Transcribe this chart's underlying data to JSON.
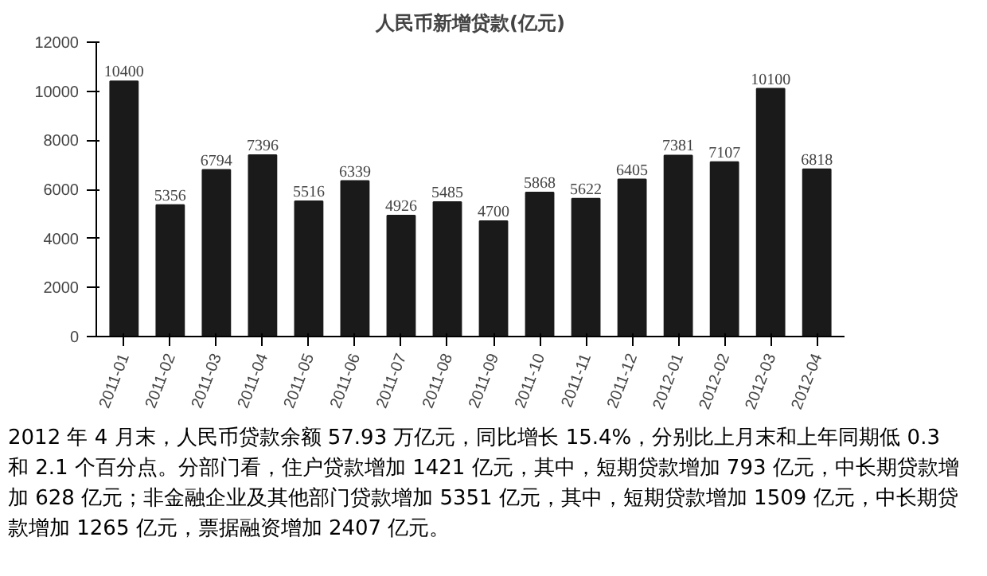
{
  "chart_data": {
    "type": "bar",
    "title": "人民币新增贷款(亿元)",
    "categories": [
      "2011-01",
      "2011-02",
      "2011-03",
      "2011-04",
      "2011-05",
      "2011-06",
      "2011-07",
      "2011-08",
      "2011-09",
      "2011-10",
      "2011-11",
      "2011-12",
      "2012-01",
      "2012-02",
      "2012-03",
      "2012-04"
    ],
    "values": [
      10400,
      5356,
      6794,
      7396,
      5516,
      6339,
      4926,
      5485,
      4700,
      5868,
      5622,
      6405,
      7381,
      7107,
      10100,
      6818
    ],
    "color": "#1a1a1a",
    "ylim": [
      0,
      12000
    ],
    "yticks": [
      0,
      2000,
      4000,
      6000,
      8000,
      10000,
      12000
    ],
    "grid": false,
    "data_labels": true,
    "annotations": [
      "2012 年 4 月末，人民币贷款余额 57.93 万亿元，同比增长 15.4%，分别比上月末和上年同期低 0.3 和 2.1 个百分点。分部门看，住户贷款增加 1421 亿元，其中，短期贷款增加 793 亿元，中长期贷款增加 628 亿元；非金融企业及其他部门贷款增加 5351 亿元，其中，短期贷款增加 1509 亿元，中长期贷款增加 1265 亿元，票据融资增加 2407 亿元。"
    ]
  }
}
